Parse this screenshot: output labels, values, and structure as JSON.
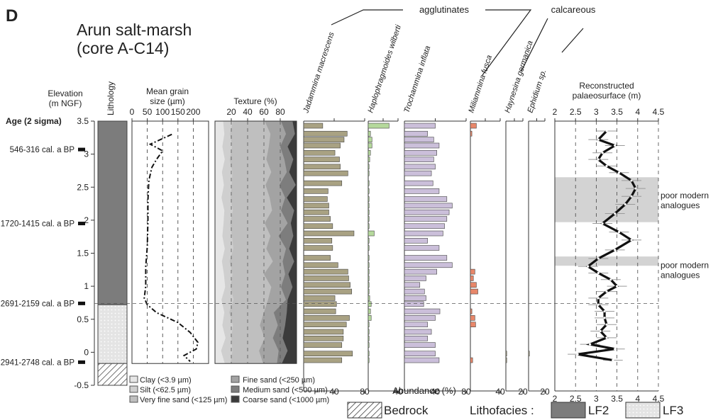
{
  "panel_letter": "D",
  "title_line1": "Arun salt-marsh",
  "title_line2": "(core A-C14)",
  "group_labels": {
    "agglutinates": "agglutinates",
    "calcareous": "calcareous"
  },
  "elevation_label_1": "Elevation",
  "elevation_label_2": "(m NGF)",
  "age_label": "Age (2 sigma)",
  "lithology_label": "Lithology",
  "grain_title_1": "Mean grain",
  "grain_title_2": "size (µm)",
  "texture_title": "Texture (%)",
  "palaeo_title_1": "Reconstructed",
  "palaeo_title_2": "palaeosurface (m)",
  "abundance_label": "Abundance (%)",
  "colors": {
    "lf2": "#7c7c7c",
    "lf3": "#e4e4e4",
    "agglutinate_olive": "#a9a283",
    "haplo_green": "#b5d99c",
    "tinflata_lilac": "#cbbfda",
    "mfusca_red": "#e8876a",
    "band_grey": "#d3d3d3"
  },
  "chart_data": [
    {
      "type": "table",
      "name_text": "Age (2 sigma)",
      "y_axis": {
        "label": "Elevation (m NGF)",
        "ticks": [
          "3.5",
          "3",
          "2.5",
          "2",
          "1.5",
          "1",
          "0.5",
          "0",
          "-0.5"
        ],
        "ylim": [
          -0.5,
          3.5
        ]
      },
      "ages": [
        {
          "label": "546-316 cal. a BP",
          "elevation": 3.07
        },
        {
          "label": "1720-1415 cal. a BP",
          "elevation": 1.95
        },
        {
          "label": "2691-2159 cal. a BP",
          "elevation": 0.74
        },
        {
          "label": "2941-2748 cal. a BP",
          "elevation": -0.15
        }
      ],
      "lithology": [
        {
          "unit": "LF2",
          "top": 3.5,
          "bottom": 0.72
        },
        {
          "unit": "LF3",
          "top": 0.72,
          "bottom": -0.17
        },
        {
          "unit": "Bedrock",
          "top": -0.17,
          "bottom": -0.5
        }
      ],
      "legend": {
        "bedrock": "Bedrock",
        "lithofacies": "Lithofacies :",
        "lf2": "LF2",
        "lf3": "LF3"
      }
    },
    {
      "type": "line",
      "title": "Mean grain size (µm)",
      "xlim": [
        0,
        250
      ],
      "xticks": [
        "0",
        "50",
        "100",
        "150",
        "200"
      ],
      "depth": [
        3.3,
        3.15,
        3.05,
        2.92,
        2.8,
        2.6,
        2.3,
        2.0,
        1.6,
        1.3,
        1.0,
        0.82,
        0.72,
        0.6,
        0.45,
        0.3,
        0.15,
        0.05,
        -0.05,
        -0.14
      ],
      "values": [
        130,
        60,
        100,
        80,
        65,
        55,
        52,
        52,
        50,
        45,
        45,
        40,
        50,
        80,
        150,
        190,
        215,
        210,
        170,
        190
      ]
    },
    {
      "type": "area",
      "title": "Texture (%)",
      "xlim": [
        0,
        100
      ],
      "xticks": [
        "20",
        "40",
        "60",
        "80"
      ],
      "series": [
        {
          "name": "Clay (<3.9 µm)",
          "cum": 10
        },
        {
          "name": "Silt (<62.5 µm)",
          "cum": 20
        },
        {
          "name": "Very fine sand (<125 µm)",
          "cum": 65
        },
        {
          "name": "Fine sand (<250 µm)",
          "cum": 83
        },
        {
          "name": "Medium sand (<500 µm)",
          "cum": 93
        },
        {
          "name": "Coarse sand (<1000 µm)",
          "cum": 100
        }
      ]
    },
    {
      "type": "bar",
      "columns": [
        {
          "name": "Jadammina macrescens",
          "xlim": [
            0,
            80
          ],
          "ticks": [
            "40",
            "80"
          ],
          "depths": [
            3.43,
            3.31,
            3.22,
            3.13,
            3.02,
            2.92,
            2.81,
            2.71,
            2.56,
            2.44,
            2.32,
            2.22,
            2.12,
            2.02,
            1.91,
            1.8,
            1.69,
            1.58,
            1.43,
            1.32,
            1.22,
            1.12,
            1.02,
            0.92,
            0.82,
            0.73,
            0.62,
            0.52,
            0.42,
            0.31,
            0.21,
            0.11,
            -0.02,
            -0.12
          ],
          "values": [
            25,
            57,
            53,
            48,
            41,
            47,
            48,
            58,
            50,
            32,
            31,
            33,
            33,
            35,
            38,
            66,
            37,
            38,
            35,
            45,
            58,
            59,
            61,
            63,
            41,
            43,
            42,
            60,
            56,
            52,
            52,
            50,
            64,
            50
          ]
        },
        {
          "name": "Haplophragmoides wilberti",
          "xlim": [
            0,
            40
          ],
          "ticks": [
            "40"
          ],
          "values": [
            28,
            3,
            5,
            5,
            3,
            2,
            1,
            1,
            1,
            1,
            1,
            1,
            1,
            1,
            1,
            8,
            1,
            1,
            1,
            1,
            1,
            1,
            1,
            1,
            2,
            4,
            3,
            4,
            1,
            1,
            1,
            1,
            1,
            1
          ]
        },
        {
          "name": "Trochammina inflata",
          "xlim": [
            0,
            80
          ],
          "ticks": [
            "40",
            "80"
          ],
          "values": [
            40,
            30,
            38,
            45,
            42,
            38,
            40,
            35,
            37,
            45,
            55,
            62,
            58,
            55,
            52,
            50,
            30,
            45,
            55,
            62,
            42,
            28,
            20,
            26,
            28,
            25,
            46,
            40,
            30,
            35,
            30,
            40,
            40,
            45
          ]
        },
        {
          "name": "Miliammina fusca",
          "xlim": [
            0,
            40
          ],
          "ticks": [
            "40"
          ],
          "values": [
            8,
            2,
            0,
            0,
            0,
            0,
            0,
            0,
            0,
            0,
            0,
            0,
            0,
            0,
            0,
            0,
            0,
            0,
            0,
            0,
            6,
            4,
            8,
            10,
            0,
            0,
            2,
            6,
            7,
            0,
            0,
            0,
            0,
            3
          ]
        },
        {
          "name": "Haynesina germanica",
          "xlim": [
            0,
            20
          ],
          "ticks": [
            "20"
          ],
          "values": [
            0,
            0,
            0,
            0,
            0,
            0,
            0,
            0,
            0,
            0,
            0,
            0,
            0,
            0,
            0,
            0,
            0,
            0,
            0,
            0,
            0,
            0,
            0,
            0,
            0,
            0,
            0,
            0,
            0,
            0,
            0,
            0,
            1,
            1
          ]
        },
        {
          "name": "Ephidium sp.",
          "xlim": [
            0,
            20
          ],
          "ticks": [
            "20"
          ],
          "values": [
            0,
            0,
            0,
            0,
            0,
            0,
            0,
            0,
            0,
            0,
            0,
            0,
            0,
            0,
            0,
            0,
            0,
            0,
            0,
            0,
            0,
            0,
            0,
            0,
            0,
            0,
            0,
            0,
            0,
            0,
            0,
            0,
            1,
            0
          ]
        }
      ]
    },
    {
      "type": "line",
      "title": "Reconstructed palaeosurface (m)",
      "xlim": [
        2,
        4.5
      ],
      "xticks": [
        "2",
        "2.5",
        "3",
        "3.5",
        "4",
        "4.5"
      ],
      "depth": [
        3.35,
        3.22,
        3.13,
        3.02,
        2.92,
        2.82,
        2.72,
        2.6,
        2.48,
        2.36,
        2.24,
        2.1,
        1.95,
        1.82,
        1.7,
        1.55,
        1.42,
        1.3,
        1.2,
        1.1,
        1.0,
        0.92,
        0.82,
        0.72,
        0.62,
        0.52,
        0.42,
        0.32,
        0.22,
        0.12,
        0.05,
        -0.03,
        -0.12
      ],
      "values": [
        3.25,
        3.05,
        3.45,
        3.15,
        3.05,
        3.25,
        3.55,
        3.85,
        3.95,
        3.85,
        3.7,
        3.45,
        3.15,
        3.55,
        3.85,
        3.45,
        3.05,
        2.8,
        3.05,
        3.35,
        3.5,
        3.25,
        3.05,
        3.05,
        3.2,
        3.2,
        3.25,
        3.1,
        3.25,
        2.85,
        3.45,
        2.55,
        3.4
      ],
      "bands": [
        {
          "from": 1.97,
          "to": 2.65,
          "label_1": "poor modern",
          "label_2": "analogues"
        },
        {
          "from": 1.31,
          "to": 1.45,
          "label_1": "poor modern",
          "label_2": "analogues"
        }
      ]
    }
  ]
}
